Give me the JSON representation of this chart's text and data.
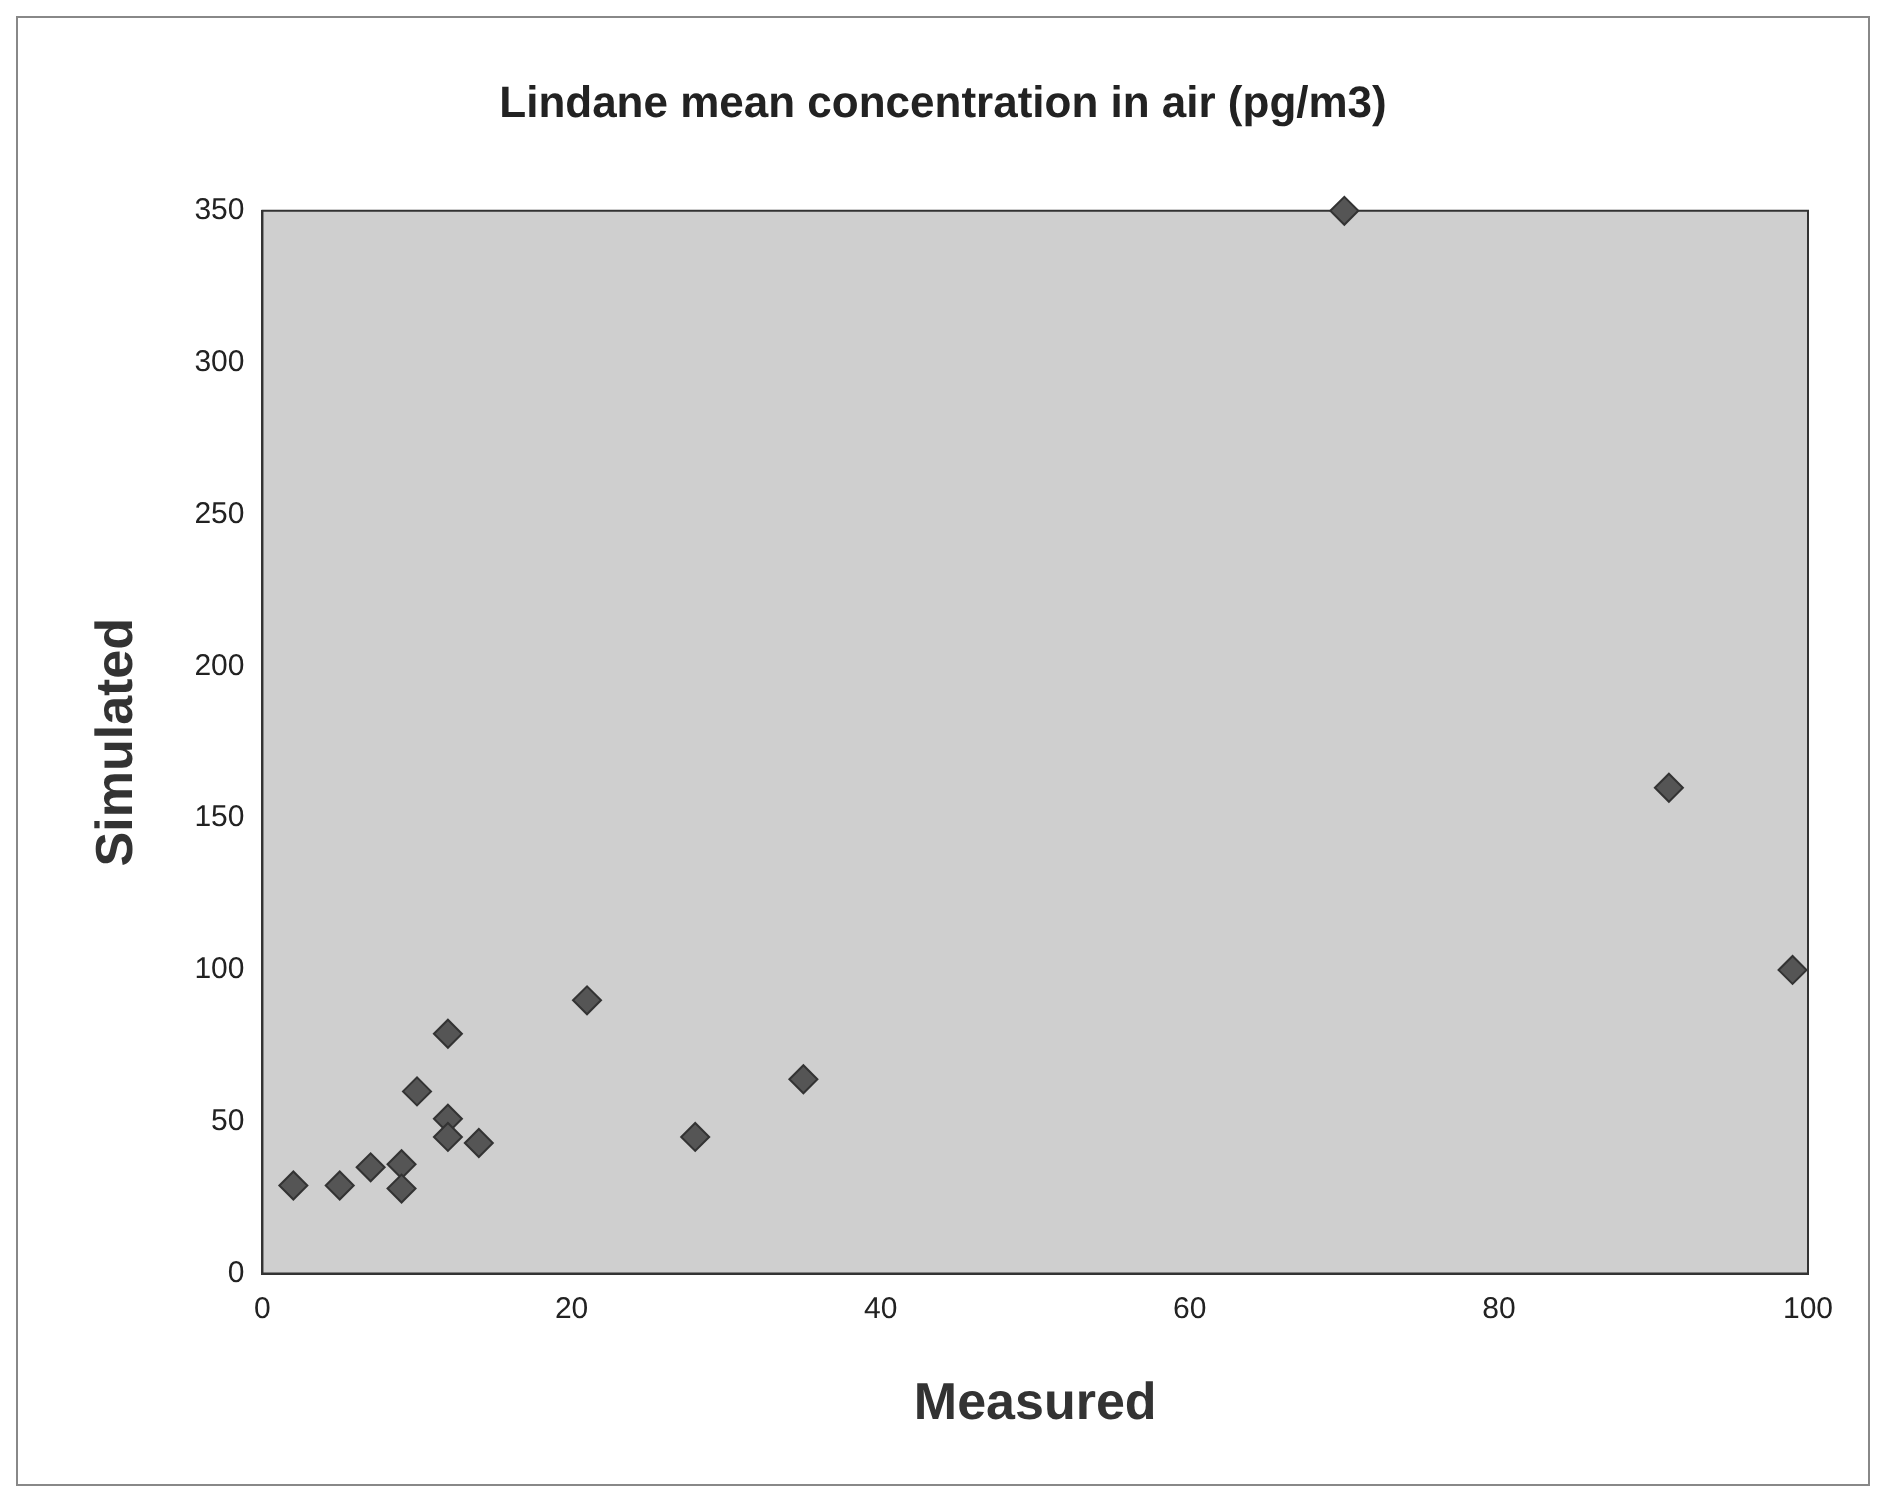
{
  "chart_data": {
    "type": "scatter",
    "title": "Lindane mean concentration in air (pg/m3)",
    "xlabel": "Measured",
    "ylabel": "Simulated",
    "series": [
      {
        "color": "#555555",
        "x": [
          2,
          5,
          7,
          9,
          9,
          10,
          12,
          12,
          12,
          14,
          21,
          28,
          35,
          70,
          91,
          99
        ],
        "values": [
          29,
          29,
          35,
          36,
          28,
          60,
          79,
          51,
          45,
          43,
          90,
          45,
          64,
          350,
          160,
          100
        ]
      }
    ],
    "xlim": [
      0,
      100
    ],
    "xticks": [
      0,
      20,
      40,
      60,
      80,
      100
    ],
    "ylim": [
      0,
      350
    ],
    "yticks": [
      0,
      50,
      100,
      150,
      200,
      250,
      300,
      350
    ],
    "grid": false,
    "legend": false,
    "marker": "diamond"
  }
}
